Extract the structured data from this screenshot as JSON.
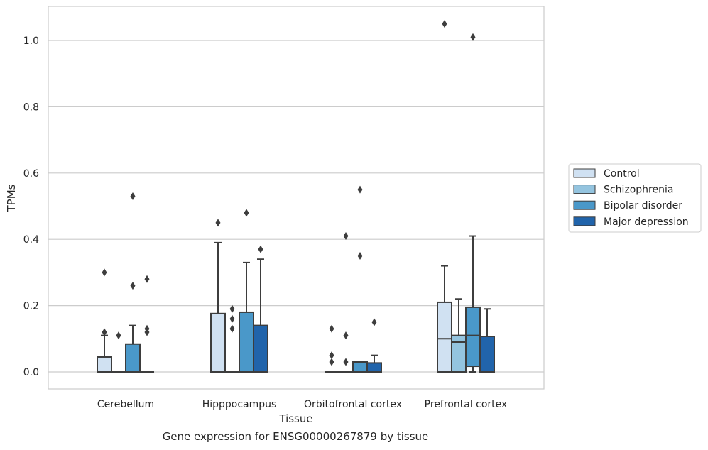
{
  "caption": "Gene expression for ENSG00000267879 by tissue",
  "chart_data": {
    "type": "box",
    "title": "",
    "xlabel": "Tissue",
    "ylabel": "TPMs",
    "ylim": [
      -0.05,
      1.1
    ],
    "yticks": [
      0.0,
      0.2,
      0.4,
      0.6,
      0.8,
      1.0
    ],
    "ytick_labels": [
      "0.0",
      "0.2",
      "0.4",
      "0.6",
      "0.8",
      "1.0"
    ],
    "grid": true,
    "legend_position": "right",
    "categories": [
      "Cerebellum",
      "Hipppocampus",
      "Orbitofrontal cortex",
      "Prefrontal cortex"
    ],
    "series": [
      {
        "name": "Control",
        "color": "#d0e1f2",
        "boxes": [
          {
            "whislo": 0.0,
            "q1": 0.0,
            "med": 0.0,
            "q3": 0.045,
            "whishi": 0.11,
            "fliers": [
              0.12,
              0.3
            ]
          },
          {
            "whislo": 0.0,
            "q1": 0.0,
            "med": 0.0,
            "q3": 0.176,
            "whishi": 0.39,
            "fliers": [
              0.45
            ]
          },
          {
            "whislo": 0.0,
            "q1": 0.0,
            "med": 0.0,
            "q3": 0.0,
            "whishi": 0.0,
            "fliers": [
              0.03,
              0.05,
              0.13
            ]
          },
          {
            "whislo": 0.0,
            "q1": 0.0,
            "med": 0.1,
            "q3": 0.21,
            "whishi": 0.32,
            "fliers": [
              1.05
            ]
          }
        ]
      },
      {
        "name": "Schizophrenia",
        "color": "#94c4df",
        "boxes": [
          {
            "whislo": 0.0,
            "q1": 0.0,
            "med": 0.0,
            "q3": 0.0,
            "whishi": 0.0,
            "fliers": [
              0.11
            ]
          },
          {
            "whislo": 0.0,
            "q1": 0.0,
            "med": 0.0,
            "q3": 0.0,
            "whishi": 0.0,
            "fliers": [
              0.13,
              0.16,
              0.19
            ]
          },
          {
            "whislo": 0.0,
            "q1": 0.0,
            "med": 0.0,
            "q3": 0.0,
            "whishi": 0.0,
            "fliers": [
              0.03,
              0.11,
              0.41
            ]
          },
          {
            "whislo": 0.0,
            "q1": 0.0,
            "med": 0.09,
            "q3": 0.11,
            "whishi": 0.22,
            "fliers": []
          }
        ]
      },
      {
        "name": "Bipolar disorder",
        "color": "#4a98c9",
        "boxes": [
          {
            "whislo": 0.0,
            "q1": 0.0,
            "med": 0.0,
            "q3": 0.084,
            "whishi": 0.14,
            "fliers": [
              0.26,
              0.53
            ]
          },
          {
            "whislo": 0.0,
            "q1": 0.0,
            "med": 0.0,
            "q3": 0.18,
            "whishi": 0.33,
            "fliers": [
              0.48
            ]
          },
          {
            "whislo": 0.0,
            "q1": 0.0,
            "med": 0.0,
            "q3": 0.03,
            "whishi": 0.03,
            "fliers": [
              0.35,
              0.55
            ]
          },
          {
            "whislo": 0.0,
            "q1": 0.017,
            "med": 0.11,
            "q3": 0.195,
            "whishi": 0.41,
            "fliers": [
              1.01
            ]
          }
        ]
      },
      {
        "name": "Major depression",
        "color": "#2164ab",
        "boxes": [
          {
            "whislo": 0.0,
            "q1": 0.0,
            "med": 0.0,
            "q3": 0.0,
            "whishi": 0.0,
            "fliers": [
              0.12,
              0.13,
              0.28
            ]
          },
          {
            "whislo": 0.0,
            "q1": 0.0,
            "med": 0.0,
            "q3": 0.14,
            "whishi": 0.34,
            "fliers": [
              0.37
            ]
          },
          {
            "whislo": 0.0,
            "q1": 0.0,
            "med": 0.0,
            "q3": 0.027,
            "whishi": 0.05,
            "fliers": [
              0.15
            ]
          },
          {
            "whislo": 0.0,
            "q1": 0.0,
            "med": 0.0,
            "q3": 0.107,
            "whishi": 0.19,
            "fliers": []
          }
        ]
      }
    ]
  }
}
